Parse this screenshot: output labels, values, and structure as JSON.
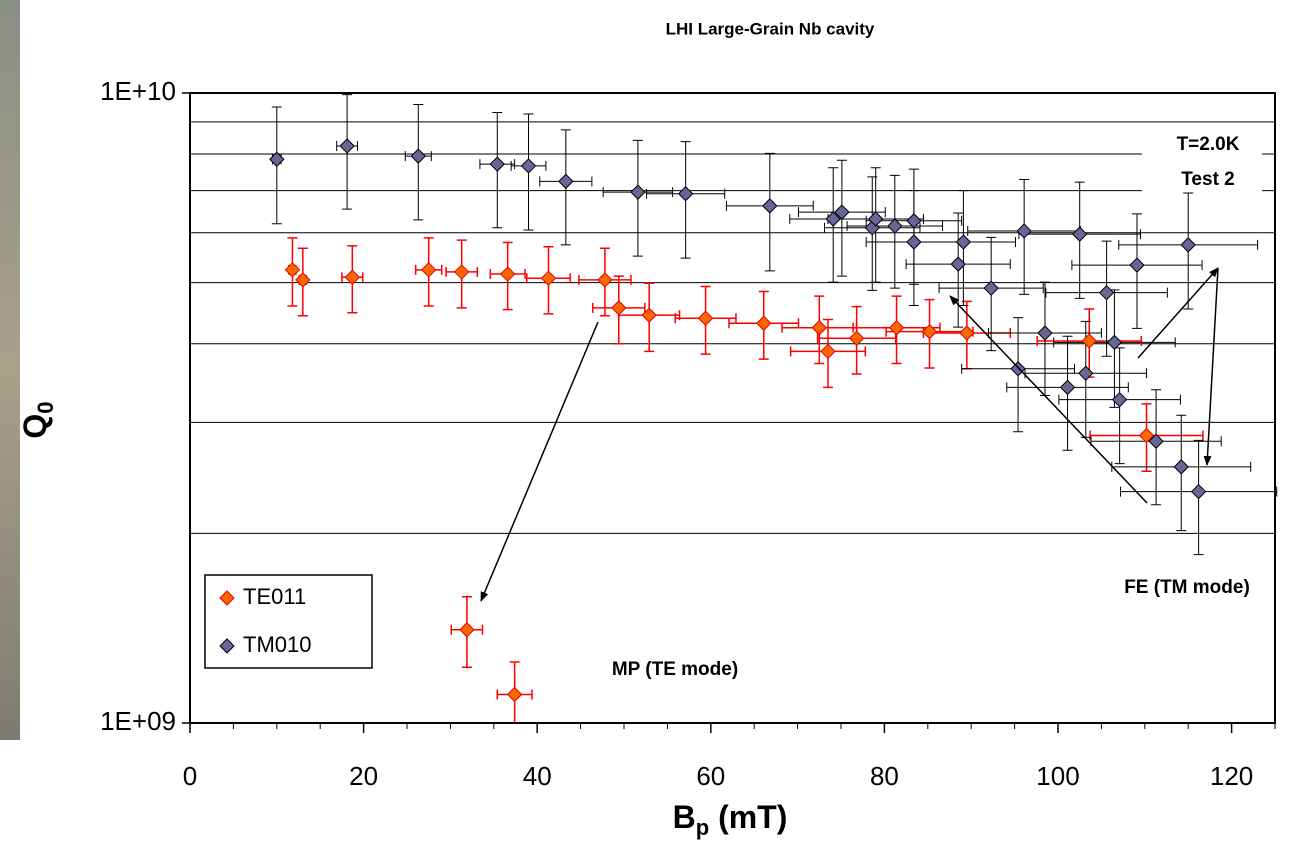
{
  "chart_data": {
    "type": "scatter",
    "title": "LHI Large-Grain Nb cavity",
    "x_label": {
      "main": "B",
      "sub": "p",
      "unit": " (mT)"
    },
    "y_label": {
      "main": "Q",
      "sub": "0"
    },
    "xlim": [
      0,
      125
    ],
    "xticks": [
      0,
      20,
      40,
      60,
      80,
      100,
      120
    ],
    "x_minor_ticks": [
      5,
      10,
      15,
      25,
      30,
      35,
      45,
      50,
      55,
      65,
      70,
      75,
      85,
      90,
      95,
      105,
      110,
      115,
      125
    ],
    "ylim": [
      1000000000,
      10000000000
    ],
    "yticks": [
      {
        "value": 1000000000,
        "label": "1E+09"
      },
      {
        "value": 10000000000,
        "label": "1E+10"
      }
    ],
    "y_grid_lines": [
      2000000000,
      3000000000,
      4000000000,
      5000000000,
      6000000000,
      7000000000,
      8000000000,
      9000000000
    ],
    "log_y": true,
    "legend": "lower left",
    "annotations": [
      "T=2.0K",
      "Test 2",
      "FE (TM mode)",
      "MP (TE mode)"
    ],
    "series": [
      {
        "name": "TE011",
        "color": "#ff6600",
        "edge": "#e00000",
        "error_color": "#ff0000",
        "x": [
          11.8,
          13.0,
          18.7,
          27.5,
          31.3,
          31.9,
          36.6,
          37.4,
          41.3,
          47.8,
          49.4,
          52.9,
          59.4,
          66.1,
          72.5,
          73.5,
          76.8,
          81.4,
          85.2,
          89.5,
          103.6,
          110.2
        ],
        "values": [
          5240000000,
          5050000000,
          5100000000,
          5240000000,
          5200000000,
          1406000000,
          5160000000,
          1110000000,
          5080000000,
          5050000000,
          4560000000,
          4440000000,
          4390000000,
          4310000000,
          4240000000,
          3890000000,
          4080000000,
          4240000000,
          4180000000,
          4160000000,
          4040000000,
          2860000000
        ],
        "x_errors": [
          0.4,
          0.4,
          1.2,
          1.5,
          1.8,
          1.8,
          2,
          2,
          2.5,
          3,
          3,
          3.5,
          3.5,
          4,
          4.3,
          4.3,
          4.5,
          5,
          5,
          5,
          6,
          6.5
        ],
        "y_errors": [
          650000000,
          620000000,
          620000000,
          650000000,
          640000000,
          180000000,
          630000000,
          140000000,
          620000000,
          620000000,
          560000000,
          550000000,
          540000000,
          530000000,
          520000000,
          480000000,
          500000000,
          520000000,
          520000000,
          510000000,
          500000000,
          350000000
        ]
      },
      {
        "name": "TM010",
        "color": "#666699",
        "edge": "#000000",
        "error_color": "#000000",
        "x": [
          10.0,
          18.1,
          26.3,
          35.4,
          39.0,
          43.3,
          51.6,
          57.1,
          66.8,
          74.1,
          75.1,
          78.6,
          79.0,
          81.2,
          83.4,
          83.4,
          88.5,
          89.1,
          92.3,
          95.4,
          96.1,
          98.5,
          101.1,
          102.5,
          103.2,
          105.6,
          106.5,
          107.1,
          109.1,
          111.3,
          114.2,
          115.0,
          116.2
        ],
        "values": [
          7850000000,
          8240000000,
          7940000000,
          7710000000,
          7660000000,
          7240000000,
          6960000000,
          6920000000,
          6620000000,
          6310000000,
          6470000000,
          6110000000,
          6310000000,
          6150000000,
          6270000000,
          5800000000,
          5350000000,
          5800000000,
          4900000000,
          3650000000,
          6040000000,
          4160000000,
          3410000000,
          5970000000,
          3590000000,
          4820000000,
          4020000000,
          3260000000,
          5330000000,
          2800000000,
          2550000000,
          5740000000,
          2330000000
        ],
        "x_errors": [
          0.5,
          1.2,
          1.5,
          2,
          2,
          3,
          4,
          4.5,
          5,
          5,
          5,
          5.5,
          5.5,
          5.5,
          5.5,
          5.5,
          6,
          6,
          6,
          6.5,
          6.5,
          6.5,
          7,
          7,
          7,
          7,
          7,
          7,
          7.5,
          7.5,
          8,
          8,
          9
        ],
        "y_errors": [
          1650000000,
          1700000000,
          1650000000,
          1600000000,
          1600000000,
          1500000000,
          1450000000,
          1450000000,
          1400000000,
          1300000000,
          1350000000,
          1250000000,
          1300000000,
          1250000000,
          1300000000,
          1200000000,
          1100000000,
          1200000000,
          1000000000,
          750000000,
          1250000000,
          850000000,
          700000000,
          1250000000,
          750000000,
          1000000000,
          850000000,
          680000000,
          1100000000,
          580000000,
          530000000,
          1200000000,
          480000000
        ]
      }
    ]
  }
}
